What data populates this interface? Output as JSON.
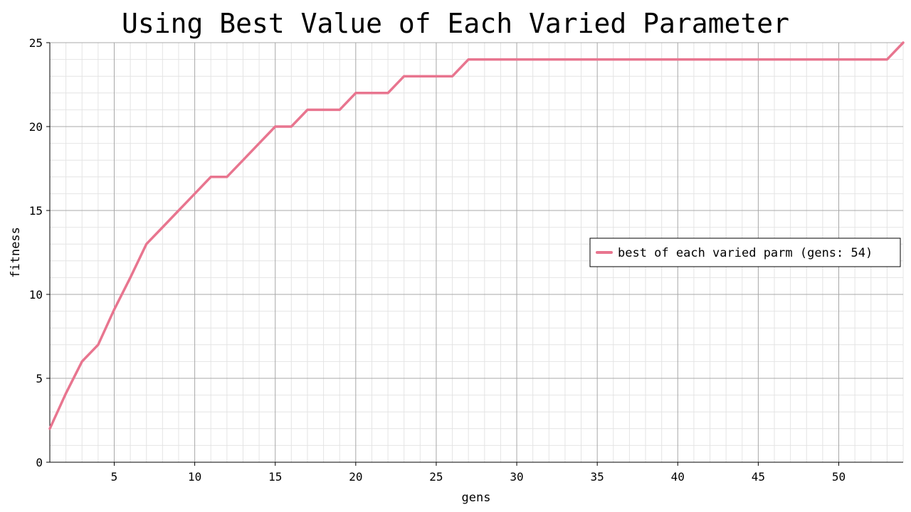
{
  "chart_data": {
    "type": "line",
    "title": "Using Best Value of Each Varied Parameter",
    "xlabel": "gens",
    "ylabel": "fitness",
    "xlim": [
      1,
      54
    ],
    "ylim": [
      0,
      25
    ],
    "x_ticks": [
      5,
      10,
      15,
      20,
      25,
      30,
      35,
      40,
      45,
      50
    ],
    "y_ticks": [
      0,
      5,
      10,
      15,
      20,
      25
    ],
    "grid": true,
    "legend_position": "right",
    "series": [
      {
        "name": "best of each varied parm (gens: 54)",
        "color": "#e8758f",
        "x": [
          1,
          2,
          3,
          4,
          5,
          6,
          7,
          8,
          9,
          10,
          11,
          12,
          13,
          14,
          15,
          16,
          17,
          18,
          19,
          20,
          21,
          22,
          23,
          24,
          25,
          26,
          27,
          28,
          29,
          30,
          31,
          32,
          33,
          34,
          35,
          36,
          37,
          38,
          39,
          40,
          41,
          42,
          43,
          44,
          45,
          46,
          47,
          48,
          49,
          50,
          51,
          52,
          53,
          54
        ],
        "values": [
          2,
          4.1,
          6,
          7,
          9.1,
          11,
          13,
          14,
          15,
          16,
          17,
          17,
          18,
          19,
          20,
          20,
          21,
          21,
          21,
          22,
          22,
          22,
          23,
          23,
          23,
          23,
          24,
          24,
          24,
          24,
          24,
          24,
          24,
          24,
          24,
          24,
          24,
          24,
          24,
          24,
          24,
          24,
          24,
          24,
          24,
          24,
          24,
          24,
          24,
          24,
          24,
          24,
          24,
          25
        ]
      }
    ]
  }
}
